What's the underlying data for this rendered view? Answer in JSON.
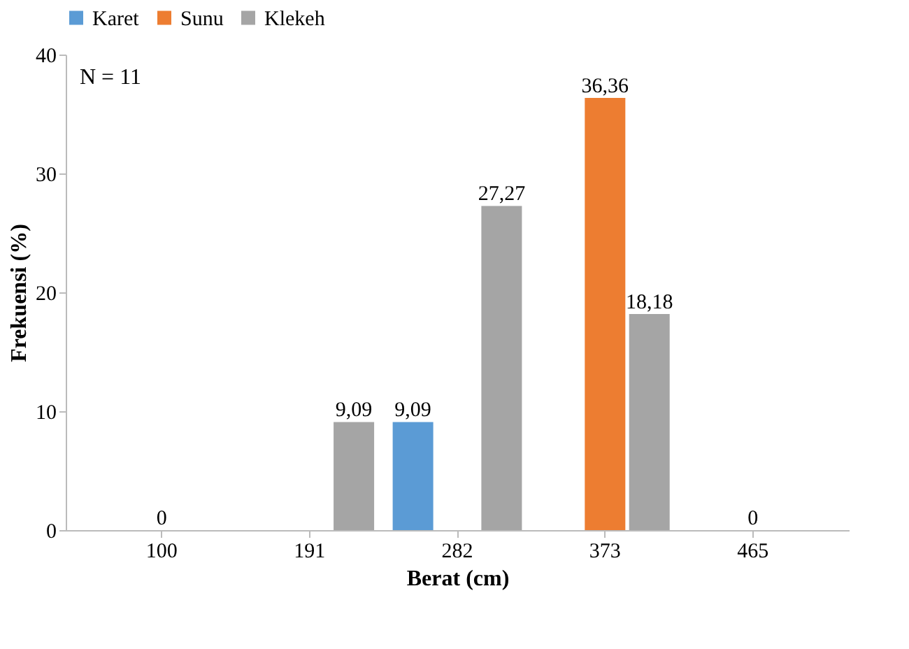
{
  "chart_data": {
    "type": "bar",
    "xlabel": "Berat (cm)",
    "ylabel": "Frekuensi (%)",
    "categories": [
      "100",
      "191",
      "282",
      "373",
      "465"
    ],
    "series": [
      {
        "name": "Karet",
        "color": "#5b9bd5",
        "values": [
          0,
          0,
          9.09,
          0,
          0
        ],
        "value_labels": [
          null,
          null,
          "9,09",
          null,
          null
        ]
      },
      {
        "name": "Sunu",
        "color": "#ed7d31",
        "values": [
          0,
          0,
          0,
          36.36,
          0
        ],
        "value_labels": [
          "0",
          null,
          null,
          "36,36",
          "0"
        ]
      },
      {
        "name": "Klekeh",
        "color": "#a5a5a5",
        "values": [
          0,
          9.09,
          27.27,
          18.18,
          0
        ],
        "value_labels": [
          null,
          "9,09",
          "27,27",
          "18,18",
          null
        ]
      }
    ],
    "ylim": [
      0,
      40
    ],
    "yticks": [
      0,
      10,
      20,
      30,
      40
    ],
    "grid": false,
    "legend": "top",
    "annotations": [
      "N = 11"
    ]
  }
}
